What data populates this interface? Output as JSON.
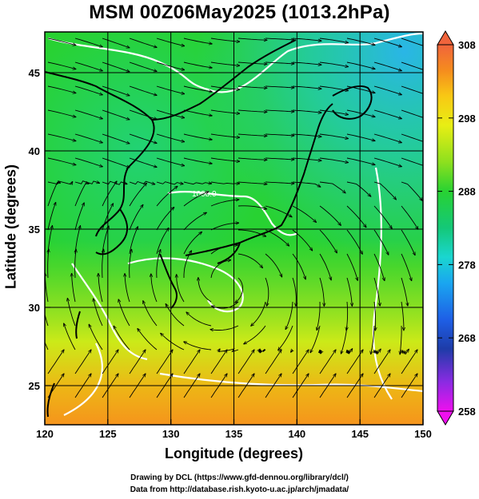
{
  "title": "MSM 00Z06May2025 (1013.2hPa)",
  "x_axis": {
    "label": "Longitude (degrees)",
    "range": [
      120,
      150
    ],
    "ticks": [
      120,
      125,
      130,
      135,
      140,
      145,
      150
    ]
  },
  "y_axis": {
    "label": "Latitude  (degrees)",
    "range": [
      22.5,
      47.6
    ],
    "ticks": [
      25,
      30,
      35,
      40,
      45
    ]
  },
  "colorbar": {
    "range": [
      258,
      308
    ],
    "ticks": [
      258,
      268,
      278,
      288,
      298,
      308
    ],
    "palette": [
      "#ee10ee",
      "#8a2be2",
      "#1e3ca8",
      "#1e5fe6",
      "#1aa6f0",
      "#1ad6d0",
      "#14c878",
      "#28d232",
      "#8ee01e",
      "#e8ee14",
      "#f8c814",
      "#f58c1e",
      "#f0643c"
    ]
  },
  "field": {
    "shading": "temperature",
    "contour_label": "1008.0",
    "vortex_center": [
      134.5,
      31.5
    ]
  },
  "credits": {
    "line1": "Drawing by DCL (https://www.gfd-dennou.org/library/dcl/)",
    "line2": "Data from http://database.rish.kyoto-u.ac.jp/arch/jmadata/"
  }
}
